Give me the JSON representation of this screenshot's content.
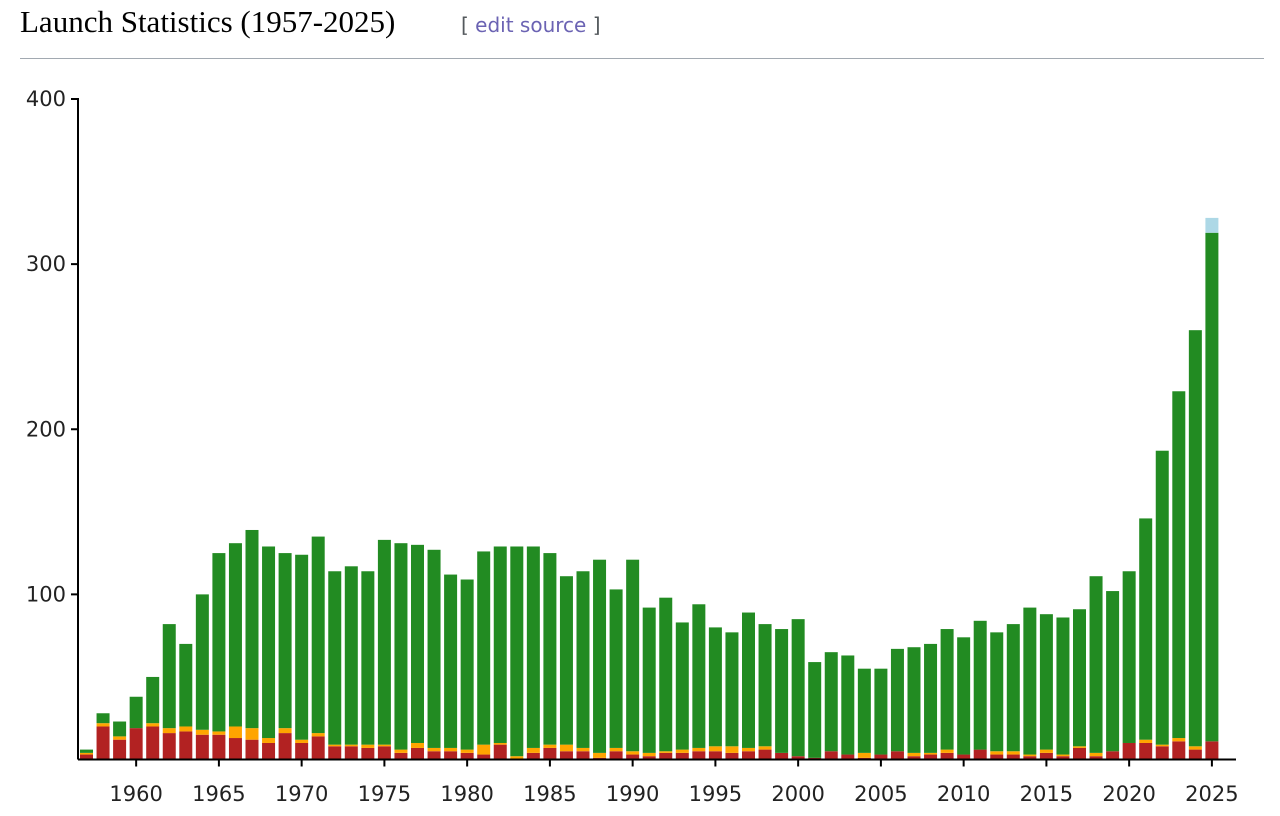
{
  "section": {
    "title": "Launch Statistics (1957-2025)",
    "edit_open": "[ ",
    "edit_label": "edit source",
    "edit_close": " ]"
  },
  "chart_data": {
    "type": "bar",
    "stacked": true,
    "title": "",
    "xlabel": "",
    "ylabel": "",
    "ylim": [
      0,
      400
    ],
    "yticks": [
      100,
      200,
      300,
      400
    ],
    "xticks": [
      1960,
      1965,
      1970,
      1975,
      1980,
      1985,
      1990,
      1995,
      2000,
      2005,
      2010,
      2015,
      2020,
      2025
    ],
    "grid": false,
    "legend": "none",
    "colors": {
      "failure": "#b22222",
      "partial": "#ffa500",
      "success": "#228b22",
      "planned": "#add8e6"
    },
    "x": [
      1957,
      1958,
      1959,
      1960,
      1961,
      1962,
      1963,
      1964,
      1965,
      1966,
      1967,
      1968,
      1969,
      1970,
      1971,
      1972,
      1973,
      1974,
      1975,
      1976,
      1977,
      1978,
      1979,
      1980,
      1981,
      1982,
      1983,
      1984,
      1985,
      1986,
      1987,
      1988,
      1989,
      1990,
      1991,
      1992,
      1993,
      1994,
      1995,
      1996,
      1997,
      1998,
      1999,
      2000,
      2001,
      2002,
      2003,
      2004,
      2005,
      2006,
      2007,
      2008,
      2009,
      2010,
      2011,
      2012,
      2013,
      2014,
      2015,
      2016,
      2017,
      2018,
      2019,
      2020,
      2021,
      2022,
      2023,
      2024,
      2025
    ],
    "series": [
      {
        "key": "failure",
        "values": [
          3,
          20,
          12,
          19,
          20,
          16,
          17,
          15,
          15,
          13,
          12,
          10,
          16,
          10,
          14,
          8,
          8,
          7,
          8,
          4,
          7,
          5,
          5,
          4,
          3,
          9,
          0,
          4,
          7,
          5,
          5,
          1,
          5,
          3,
          2,
          4,
          4,
          5,
          5,
          4,
          5,
          6,
          4,
          2,
          1,
          5,
          3,
          1,
          3,
          5,
          2,
          3,
          4,
          3,
          6,
          3,
          3,
          2,
          4,
          2,
          7,
          2,
          5,
          10,
          10,
          8,
          11,
          6,
          11
        ]
      },
      {
        "key": "partial",
        "values": [
          1,
          2,
          2,
          0,
          2,
          3,
          3,
          3,
          2,
          7,
          7,
          3,
          3,
          2,
          2,
          1,
          1,
          2,
          1,
          2,
          3,
          2,
          2,
          2,
          6,
          1,
          2,
          3,
          2,
          4,
          2,
          3,
          2,
          2,
          2,
          1,
          2,
          2,
          3,
          4,
          2,
          2,
          0,
          0,
          0,
          0,
          0,
          3,
          0,
          0,
          2,
          1,
          2,
          0,
          0,
          2,
          2,
          1,
          2,
          1,
          1,
          2,
          0,
          0,
          2,
          1,
          2,
          2,
          0
        ]
      },
      {
        "key": "success",
        "values": [
          2,
          6,
          9,
          19,
          28,
          63,
          50,
          82,
          108,
          111,
          120,
          116,
          106,
          112,
          119,
          105,
          108,
          105,
          124,
          125,
          120,
          120,
          105,
          103,
          117,
          119,
          127,
          122,
          116,
          102,
          107,
          117,
          96,
          116,
          88,
          93,
          77,
          87,
          72,
          69,
          82,
          74,
          75,
          83,
          58,
          60,
          60,
          51,
          52,
          62,
          64,
          66,
          73,
          71,
          78,
          72,
          77,
          89,
          82,
          83,
          83,
          107,
          97,
          104,
          134,
          178,
          210,
          252,
          308
        ]
      },
      {
        "key": "planned",
        "values": [
          0,
          0,
          0,
          0,
          0,
          0,
          0,
          0,
          0,
          0,
          0,
          0,
          0,
          0,
          0,
          0,
          0,
          0,
          0,
          0,
          0,
          0,
          0,
          0,
          0,
          0,
          0,
          0,
          0,
          0,
          0,
          0,
          0,
          0,
          0,
          0,
          0,
          0,
          0,
          0,
          0,
          0,
          0,
          0,
          0,
          0,
          0,
          0,
          0,
          0,
          0,
          0,
          0,
          0,
          0,
          0,
          0,
          0,
          0,
          0,
          0,
          0,
          0,
          0,
          0,
          0,
          0,
          0,
          9
        ]
      }
    ]
  }
}
